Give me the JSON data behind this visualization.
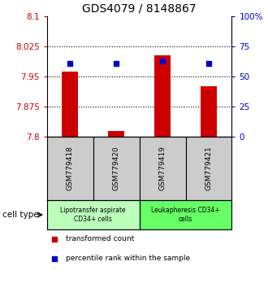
{
  "title": "GDS4079 / 8148867",
  "samples": [
    "GSM779418",
    "GSM779420",
    "GSM779419",
    "GSM779421"
  ],
  "transformed_counts": [
    7.963,
    7.815,
    8.003,
    7.925
  ],
  "percentile_ranks": [
    61.0,
    61.0,
    63.0,
    61.0
  ],
  "ylim": [
    7.8,
    8.1
  ],
  "yticks_left": [
    7.8,
    7.875,
    7.95,
    8.025,
    8.1
  ],
  "yticks_right": [
    0,
    25,
    50,
    75,
    100
  ],
  "ytick_labels_left": [
    "7.8",
    "7.875",
    "7.95",
    "8.025",
    "8.1"
  ],
  "ytick_labels_right": [
    "0",
    "25",
    "50",
    "75",
    "100%"
  ],
  "bar_color": "#cc0000",
  "dot_color": "#0000cc",
  "bar_width": 0.35,
  "groups": [
    {
      "label": "Lipotransfer aspirate\nCD34+ cells",
      "color": "#bbffbb"
    },
    {
      "label": "Leukapheresis CD34+\ncells",
      "color": "#66ff66"
    }
  ],
  "cell_type_label": "cell type",
  "legend_items": [
    {
      "color": "#cc0000",
      "label": "transformed count"
    },
    {
      "color": "#0000cc",
      "label": "percentile rank within the sample"
    }
  ],
  "grid_yticks": [
    7.875,
    7.95,
    8.025
  ],
  "ylabel_left_color": "#cc0000",
  "ylabel_right_color": "#0000cc",
  "background_color": "#ffffff",
  "plot_bg_color": "#ffffff",
  "sample_label_bg": "#cccccc",
  "title_fontsize": 10
}
